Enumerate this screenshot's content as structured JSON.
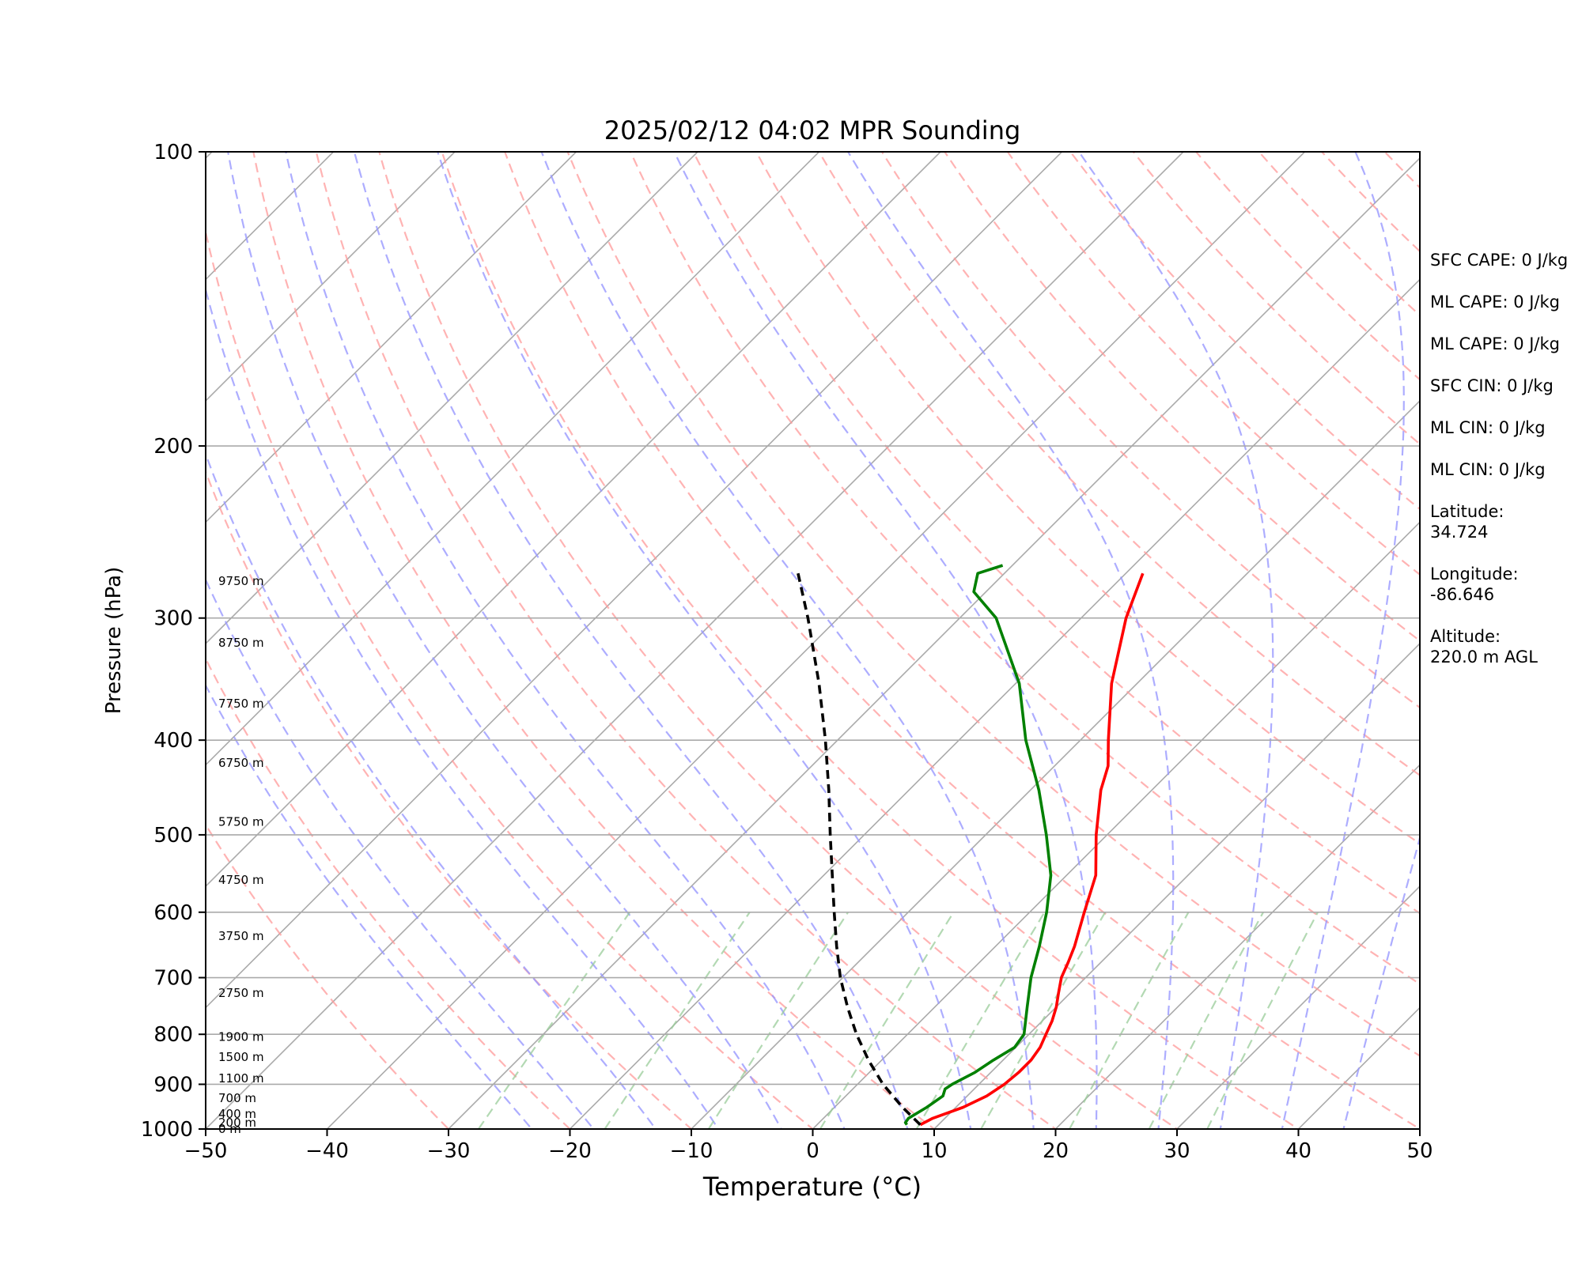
{
  "chart_data": {
    "type": "line",
    "title": "2025/02/12 04:02 MPR Sounding",
    "xlabel": "Temperature (°C)",
    "ylabel": "Pressure (hPa)",
    "xlim": [
      -50,
      50
    ],
    "ylim": [
      1000,
      100
    ],
    "yscale": "log",
    "x_ticks": [
      "−50",
      "−40",
      "−30",
      "−20",
      "−10",
      "0",
      "10",
      "20",
      "30",
      "40",
      "50"
    ],
    "y_ticks": [
      "100",
      "200",
      "300",
      "400",
      "500",
      "600",
      "700",
      "800",
      "900",
      "1000"
    ],
    "grid": "horizontal isobars",
    "series": [
      {
        "key": "temperature",
        "color": "#ff0000",
        "points": [
          {
            "p": 990,
            "t": 8.5
          },
          {
            "p": 975,
            "t": 9.0
          },
          {
            "p": 950,
            "t": 10.6
          },
          {
            "p": 925,
            "t": 11.6
          },
          {
            "p": 900,
            "t": 12.1
          },
          {
            "p": 875,
            "t": 12.3
          },
          {
            "p": 850,
            "t": 12.3
          },
          {
            "p": 825,
            "t": 12.0
          },
          {
            "p": 800,
            "t": 11.4
          },
          {
            "p": 775,
            "t": 10.8
          },
          {
            "p": 750,
            "t": 10.0
          },
          {
            "p": 725,
            "t": 9.0
          },
          {
            "p": 700,
            "t": 8.0
          },
          {
            "p": 675,
            "t": 7.3
          },
          {
            "p": 650,
            "t": 6.5
          },
          {
            "p": 600,
            "t": 4.5
          },
          {
            "p": 550,
            "t": 2.4
          },
          {
            "p": 500,
            "t": -0.9
          },
          {
            "p": 450,
            "t": -4.2
          },
          {
            "p": 425,
            "t": -5.6
          },
          {
            "p": 400,
            "t": -7.7
          },
          {
            "p": 350,
            "t": -12.1
          },
          {
            "p": 300,
            "t": -16.3
          },
          {
            "p": 270,
            "t": -18.6
          }
        ]
      },
      {
        "key": "dewpoint",
        "color": "#008000",
        "points": [
          {
            "p": 990,
            "t": 7.4
          },
          {
            "p": 985,
            "t": 7.1
          },
          {
            "p": 975,
            "t": 7.0
          },
          {
            "p": 950,
            "t": 7.6
          },
          {
            "p": 925,
            "t": 8.0
          },
          {
            "p": 910,
            "t": 7.6
          },
          {
            "p": 900,
            "t": 7.8
          },
          {
            "p": 875,
            "t": 8.7
          },
          {
            "p": 850,
            "t": 9.2
          },
          {
            "p": 825,
            "t": 9.9
          },
          {
            "p": 800,
            "t": 9.6
          },
          {
            "p": 750,
            "t": 7.6
          },
          {
            "p": 700,
            "t": 5.5
          },
          {
            "p": 650,
            "t": 3.6
          },
          {
            "p": 600,
            "t": 1.4
          },
          {
            "p": 550,
            "t": -1.3
          },
          {
            "p": 500,
            "t": -5.0
          },
          {
            "p": 450,
            "t": -9.3
          },
          {
            "p": 400,
            "t": -14.5
          },
          {
            "p": 350,
            "t": -19.7
          },
          {
            "p": 300,
            "t": -27.0
          },
          {
            "p": 282,
            "t": -31.0
          },
          {
            "p": 270,
            "t": -32.2
          },
          {
            "p": 265,
            "t": -30.8
          }
        ]
      },
      {
        "key": "parcel",
        "color": "#000000",
        "dashed": true,
        "points": [
          {
            "p": 990,
            "t": 8.5
          },
          {
            "p": 950,
            "t": 5.6
          },
          {
            "p": 900,
            "t": 2.1
          },
          {
            "p": 850,
            "t": -1.1
          },
          {
            "p": 800,
            "t": -4.2
          },
          {
            "p": 750,
            "t": -7.2
          },
          {
            "p": 700,
            "t": -10.2
          },
          {
            "p": 650,
            "t": -13.1
          },
          {
            "p": 600,
            "t": -16.1
          },
          {
            "p": 550,
            "t": -19.3
          },
          {
            "p": 500,
            "t": -22.8
          },
          {
            "p": 450,
            "t": -26.6
          },
          {
            "p": 400,
            "t": -31.0
          },
          {
            "p": 350,
            "t": -36.2
          },
          {
            "p": 300,
            "t": -42.5
          },
          {
            "p": 270,
            "t": -47.0
          }
        ]
      }
    ],
    "height_labels": [
      {
        "p": 1000,
        "label": "0 m"
      },
      {
        "p": 985,
        "label": "200 m"
      },
      {
        "p": 965,
        "label": "400 m"
      },
      {
        "p": 930,
        "label": "700 m"
      },
      {
        "p": 888,
        "label": "1100 m"
      },
      {
        "p": 844,
        "label": "1500 m"
      },
      {
        "p": 805,
        "label": "1900 m"
      },
      {
        "p": 726,
        "label": "2750 m"
      },
      {
        "p": 635,
        "label": "3750 m"
      },
      {
        "p": 556,
        "label": "4750 m"
      },
      {
        "p": 485,
        "label": "5750 m"
      },
      {
        "p": 422,
        "label": "6750 m"
      },
      {
        "p": 367,
        "label": "7750 m"
      },
      {
        "p": 318,
        "label": "8750 m"
      },
      {
        "p": 275,
        "label": "9750 m"
      }
    ],
    "background_lines": {
      "isotherm_color": "#aaaaaa",
      "dry_adiabat_color": "#ff9999",
      "moist_adiabat_color": "#9999ff",
      "mixing_ratio_color": "#99cc99"
    }
  },
  "stats": {
    "sfc_cape": "SFC CAPE: 0 J/kg",
    "ml_cape": "ML CAPE: 0 J/kg",
    "ml_cape_2": "ML CAPE: 0 J/kg",
    "sfc_cin": "SFC CIN: 0 J/kg",
    "ml_cin": "ML CIN: 0 J/kg",
    "ml_cin_2": "ML CIN: 0 J/kg",
    "latitude_label": "Latitude:",
    "latitude_value": "34.724",
    "longitude_label": "Longitude:",
    "longitude_value": "-86.646",
    "altitude_label": "Altitude:",
    "altitude_value": "220.0 m AGL"
  }
}
